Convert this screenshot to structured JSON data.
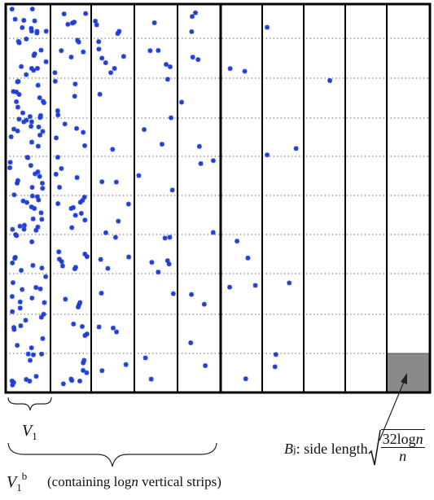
{
  "labels": {
    "v1_base": "V",
    "v1_sub": "1",
    "v1b_base": "V",
    "v1b_sub": "1",
    "v1b_sup": "b",
    "v1b_desc_prefix": "(containing ",
    "v1b_desc_log": "log",
    "v1b_desc_n": "n",
    "v1b_desc_suffix": " vertical  strips)",
    "bj_base": "B",
    "bj_sub": "j",
    "bj_text": " : side length ",
    "bj_sqrt_num": "32log",
    "bj_sqrt_num_n": "n",
    "bj_sqrt_den": "n"
  },
  "colors": {
    "points": "#1f3fd6",
    "highlight_square": "#8a8a8a",
    "grid": "#000000",
    "dotted_line": "#666666"
  }
}
